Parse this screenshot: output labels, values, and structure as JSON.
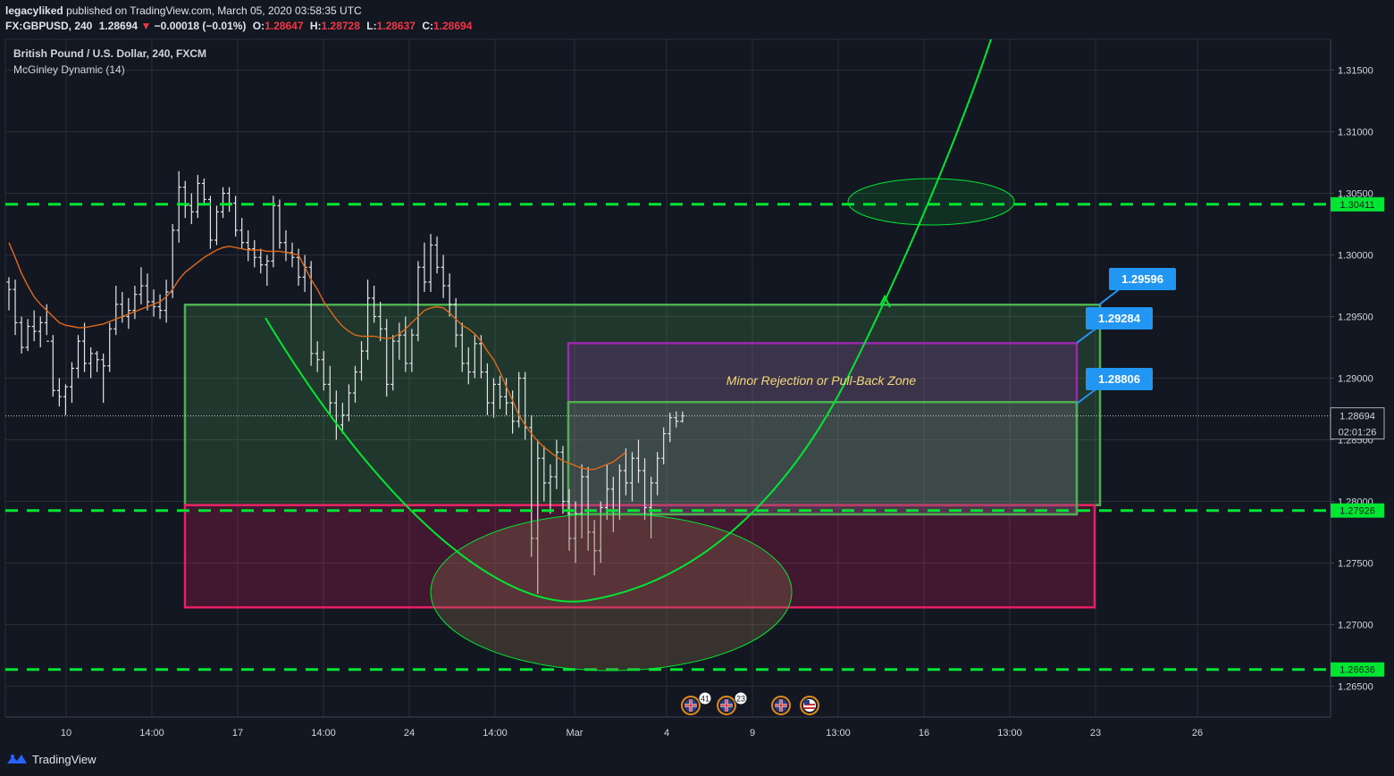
{
  "header": {
    "user": "legacyliked",
    "published": "published on TradingView.com, March 05, 2020 03:58:35 UTC",
    "symbol": "FX:GBPUSD, 240",
    "last": "1.28694",
    "change": "−0.00018 (−0.01%)",
    "o_label": "O:",
    "o_value": "1.28647",
    "h_label": "H:",
    "h_value": "1.28728",
    "l_label": "L:",
    "l_value": "1.28637",
    "c_label": "C:",
    "c_value": "1.28694"
  },
  "legend": {
    "instrument": "British Pound / U.S. Dollar, 240, FXCM",
    "indicator": "McGinley Dynamic (14)"
  },
  "footer": {
    "brand": "TradingView"
  },
  "colors": {
    "background": "#131722",
    "grid": "#2a2e39",
    "candle": "#e6e6e6",
    "indicator": "#e0691a",
    "level_line": "#00e632",
    "curve": "#00e632",
    "green_zone": "#4caf50",
    "magenta_zone": "#e91e63",
    "purple_zone": "#9c27b0",
    "label_blue": "#2196f3",
    "annotation_text": "#f5d97a"
  },
  "chart_data": {
    "type": "candlestick",
    "ylim": [
      1.2625,
      1.3175
    ],
    "y_ticks": [
      "1.31500",
      "1.31000",
      "1.30500",
      "1.30000",
      "1.29500",
      "1.29000",
      "1.28500",
      "1.28000",
      "1.27500",
      "1.27000",
      "1.26500"
    ],
    "x_tick_labels": [
      "10",
      "14:00",
      "17",
      "14:00",
      "24",
      "14:00",
      "Mar",
      "4",
      "9",
      "13:00",
      "16",
      "13:00",
      "23",
      "26"
    ],
    "last_price": "1.28694",
    "countdown": "02:01:26",
    "horizontal_levels": [
      {
        "value": 1.30411,
        "label": "1.30411"
      },
      {
        "value": 1.27926,
        "label": "1.27926"
      },
      {
        "value": 1.26636,
        "label": "1.26636"
      }
    ],
    "zones": [
      {
        "name": "demand-green",
        "top": 1.29596,
        "bottom": 1.2797
      },
      {
        "name": "supply-magenta",
        "top": 1.2797,
        "bottom": 1.2714
      },
      {
        "name": "pullback-purple",
        "top": 1.29284,
        "bottom": 1.27895
      },
      {
        "name": "inner-green",
        "top": 1.28806,
        "bottom": 1.27895
      }
    ],
    "price_labels": [
      "1.29596",
      "1.29284",
      "1.28806"
    ],
    "annotation": "Minor Rejection or Pull-Back Zone",
    "events": [
      {
        "flag": "GB",
        "count": "41"
      },
      {
        "flag": "GB",
        "count": "23"
      },
      {
        "flag": "GB"
      },
      {
        "flag": "US"
      }
    ],
    "ohlc": [
      [
        1.2978,
        1.2982,
        1.2955,
        1.2972
      ],
      [
        1.2972,
        1.298,
        1.2935,
        1.2945
      ],
      [
        1.2945,
        1.295,
        1.292,
        1.2925
      ],
      [
        1.2925,
        1.2948,
        1.2922,
        1.2942
      ],
      [
        1.2942,
        1.2955,
        1.293,
        1.2938
      ],
      [
        1.2938,
        1.295,
        1.2925,
        1.2945
      ],
      [
        1.2945,
        1.296,
        1.2935,
        1.293
      ],
      [
        1.293,
        1.2935,
        1.2885,
        1.289
      ],
      [
        1.289,
        1.29,
        1.2877,
        1.2885
      ],
      [
        1.2885,
        1.2895,
        1.287,
        1.2893
      ],
      [
        1.2893,
        1.2913,
        1.288,
        1.2908
      ],
      [
        1.2908,
        1.2935,
        1.29,
        1.293
      ],
      [
        1.293,
        1.2945,
        1.2905,
        1.2912
      ],
      [
        1.2912,
        1.2925,
        1.29,
        1.292
      ],
      [
        1.292,
        1.2922,
        1.2905,
        1.2915
      ],
      [
        1.2915,
        1.292,
        1.288,
        1.291
      ],
      [
        1.291,
        1.2945,
        1.2905,
        1.294
      ],
      [
        1.294,
        1.2975,
        1.2935,
        1.296
      ],
      [
        1.296,
        1.297,
        1.2945,
        1.295
      ],
      [
        1.295,
        1.2965,
        1.294,
        1.2955
      ],
      [
        1.2955,
        1.2975,
        1.2948,
        1.2968
      ],
      [
        1.2968,
        1.299,
        1.296,
        1.2975
      ],
      [
        1.2975,
        1.2985,
        1.2955,
        1.2962
      ],
      [
        1.2962,
        1.2972,
        1.295,
        1.2958
      ],
      [
        1.2958,
        1.2968,
        1.2948,
        1.2955
      ],
      [
        1.2955,
        1.298,
        1.2945,
        1.297
      ],
      [
        1.297,
        1.3025,
        1.2965,
        1.302
      ],
      [
        1.302,
        1.3068,
        1.301,
        1.3055
      ],
      [
        1.3055,
        1.306,
        1.303,
        1.304
      ],
      [
        1.304,
        1.305,
        1.3025,
        1.3035
      ],
      [
        1.3035,
        1.3065,
        1.303,
        1.3058
      ],
      [
        1.3058,
        1.3062,
        1.304,
        1.3045
      ],
      [
        1.3045,
        1.3048,
        1.3005,
        1.3012
      ],
      [
        1.3012,
        1.304,
        1.3008,
        1.3035
      ],
      [
        1.3035,
        1.3055,
        1.303,
        1.305
      ],
      [
        1.305,
        1.3055,
        1.3035,
        1.3042
      ],
      [
        1.3042,
        1.3048,
        1.3015,
        1.302
      ],
      [
        1.302,
        1.303,
        1.3005,
        1.301
      ],
      [
        1.301,
        1.302,
        1.2995,
        1.3005
      ],
      [
        1.3005,
        1.3012,
        1.299,
        1.2998
      ],
      [
        1.2998,
        1.3005,
        1.2985,
        1.2992
      ],
      [
        1.2992,
        1.3,
        1.2975,
        1.2995
      ],
      [
        1.2995,
        1.3048,
        1.299,
        1.304
      ],
      [
        1.304,
        1.3045,
        1.3005,
        1.301
      ],
      [
        1.301,
        1.302,
        1.2995,
        1.3002
      ],
      [
        1.3002,
        1.301,
        1.299,
        1.2998
      ],
      [
        1.2998,
        1.3005,
        1.2975,
        1.2982
      ],
      [
        1.2982,
        1.3,
        1.297,
        1.299
      ],
      [
        1.299,
        1.2995,
        1.291,
        1.292
      ],
      [
        1.292,
        1.293,
        1.2905,
        1.2915
      ],
      [
        1.2915,
        1.2922,
        1.289,
        1.2895
      ],
      [
        1.2895,
        1.291,
        1.287,
        1.288
      ],
      [
        1.288,
        1.289,
        1.285,
        1.2862
      ],
      [
        1.2862,
        1.288,
        1.2855,
        1.287
      ],
      [
        1.287,
        1.2895,
        1.2865,
        1.2888
      ],
      [
        1.2888,
        1.291,
        1.288,
        1.2905
      ],
      [
        1.2905,
        1.293,
        1.2898,
        1.2922
      ],
      [
        1.2922,
        1.298,
        1.2915,
        1.2965
      ],
      [
        1.2965,
        1.2975,
        1.2945,
        1.295
      ],
      [
        1.295,
        1.2962,
        1.293,
        1.294
      ],
      [
        1.294,
        1.2948,
        1.2885,
        1.2895
      ],
      [
        1.2895,
        1.2935,
        1.289,
        1.293
      ],
      [
        1.293,
        1.2945,
        1.2915,
        1.2935
      ],
      [
        1.2935,
        1.295,
        1.2905,
        1.2912
      ],
      [
        1.2912,
        1.294,
        1.2905,
        1.2935
      ],
      [
        1.2935,
        1.2995,
        1.293,
        1.299
      ],
      [
        1.299,
        1.301,
        1.297,
        1.2978
      ],
      [
        1.2978,
        1.3017,
        1.297,
        1.3008
      ],
      [
        1.3008,
        1.3015,
        1.2985,
        1.299
      ],
      [
        1.299,
        1.3,
        1.2965,
        1.2975
      ],
      [
        1.2975,
        1.2985,
        1.295,
        1.296
      ],
      [
        1.296,
        1.2965,
        1.2925,
        1.2935
      ],
      [
        1.2935,
        1.2945,
        1.2905,
        1.2912
      ],
      [
        1.2912,
        1.2925,
        1.2895,
        1.2905
      ],
      [
        1.2905,
        1.2935,
        1.29,
        1.2928
      ],
      [
        1.2928,
        1.2935,
        1.29,
        1.2905
      ],
      [
        1.2905,
        1.2912,
        1.287,
        1.288
      ],
      [
        1.288,
        1.29,
        1.2868,
        1.2895
      ],
      [
        1.2895,
        1.2902,
        1.2875,
        1.2885
      ],
      [
        1.2885,
        1.29,
        1.287,
        1.288
      ],
      [
        1.288,
        1.289,
        1.2855,
        1.2865
      ],
      [
        1.2865,
        1.2905,
        1.286,
        1.29
      ],
      [
        1.29,
        1.2905,
        1.285,
        1.286
      ],
      [
        1.286,
        1.287,
        1.2755,
        1.277
      ],
      [
        1.277,
        1.285,
        1.2725,
        1.2835
      ],
      [
        1.2835,
        1.2845,
        1.28,
        1.2815
      ],
      [
        1.2815,
        1.283,
        1.279,
        1.282
      ],
      [
        1.282,
        1.285,
        1.281,
        1.284
      ],
      [
        1.284,
        1.2845,
        1.279,
        1.28
      ],
      [
        1.28,
        1.281,
        1.276,
        1.277
      ],
      [
        1.277,
        1.28,
        1.275,
        1.279
      ],
      [
        1.279,
        1.283,
        1.277,
        1.282
      ],
      [
        1.282,
        1.2828,
        1.276,
        1.2775
      ],
      [
        1.2775,
        1.2785,
        1.274,
        1.276
      ],
      [
        1.276,
        1.28,
        1.275,
        1.2795
      ],
      [
        1.2795,
        1.283,
        1.2785,
        1.281
      ],
      [
        1.281,
        1.282,
        1.2775,
        1.279
      ],
      [
        1.279,
        1.283,
        1.2785,
        1.2825
      ],
      [
        1.2825,
        1.2843,
        1.2805,
        1.2815
      ],
      [
        1.2815,
        1.284,
        1.28,
        1.2835
      ],
      [
        1.2835,
        1.285,
        1.2815,
        1.2825
      ],
      [
        1.2825,
        1.2835,
        1.2785,
        1.2795
      ],
      [
        1.2795,
        1.282,
        1.277,
        1.2815
      ],
      [
        1.2815,
        1.284,
        1.2805,
        1.2835
      ],
      [
        1.2835,
        1.286,
        1.283,
        1.2855
      ],
      [
        1.2855,
        1.2872,
        1.2848,
        1.2868
      ],
      [
        1.2868,
        1.2873,
        1.286,
        1.2865
      ],
      [
        1.2865,
        1.2873,
        1.2864,
        1.28694
      ]
    ],
    "indicator_values": [
      1.301,
      1.2998,
      1.2985,
      1.2975,
      1.2966,
      1.296,
      1.2955,
      1.295,
      1.2945,
      1.2943,
      1.2942,
      1.2941,
      1.2941,
      1.2942,
      1.2943,
      1.2944,
      1.2946,
      1.2948,
      1.295,
      1.2952,
      1.2954,
      1.2956,
      1.2958,
      1.296,
      1.2962,
      1.2966,
      1.2972,
      1.298,
      1.2986,
      1.299,
      1.2994,
      1.2998,
      1.3001,
      1.3004,
      1.3006,
      1.3007,
      1.3006,
      1.3005,
      1.3004,
      1.3004,
      1.3004,
      1.3003,
      1.3003,
      1.3003,
      1.3002,
      1.3001,
      1.3,
      1.299,
      1.298,
      1.2972,
      1.2962,
      1.2955,
      1.2948,
      1.2942,
      1.2938,
      1.2935,
      1.2934,
      1.2934,
      1.2934,
      1.2933,
      1.2932,
      1.2933,
      1.2936,
      1.294,
      1.2945,
      1.295,
      1.2955,
      1.2957,
      1.2958,
      1.2957,
      1.2953,
      1.2948,
      1.2943,
      1.294,
      1.2936,
      1.293,
      1.2922,
      1.2915,
      1.2905,
      1.2893,
      1.2882,
      1.287,
      1.2862,
      1.2855,
      1.2849,
      1.2844,
      1.284,
      1.2836,
      1.2833,
      1.2831,
      1.2829,
      1.2827,
      1.2826,
      1.2826,
      1.2828,
      1.283,
      1.2832,
      1.2836,
      1.284
    ]
  }
}
